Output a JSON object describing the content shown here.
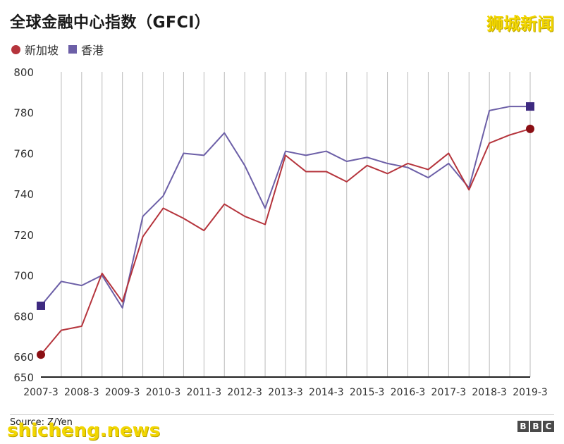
{
  "header": {
    "title": "全球金融中心指数（GFCI）",
    "watermark": "狮城新闻"
  },
  "footer": {
    "source": "Source: Z/Yen",
    "watermark": "shicheng.news",
    "bbc_letters": [
      "B",
      "B",
      "C"
    ]
  },
  "colors": {
    "singapore": "#b5343c",
    "hongkong": "#6c5fa7",
    "grid": "#bbbbbb",
    "axis": "#222222"
  },
  "chart_data": {
    "type": "line",
    "title": "全球金融中心指数（GFCI）",
    "xlabel": "",
    "ylabel": "",
    "ylim": [
      650,
      800
    ],
    "yticks": [
      650,
      660,
      680,
      700,
      720,
      740,
      760,
      780,
      800
    ],
    "x": [
      "2007-3",
      "2007-9",
      "2008-3",
      "2008-9",
      "2009-3",
      "2009-9",
      "2010-3",
      "2010-9",
      "2011-3",
      "2011-9",
      "2012-3",
      "2012-9",
      "2013-3",
      "2013-9",
      "2014-3",
      "2014-9",
      "2015-3",
      "2015-9",
      "2016-3",
      "2016-9",
      "2017-3",
      "2017-9",
      "2018-3",
      "2018-9",
      "2019-3"
    ],
    "xtick_labels": [
      "2007-3",
      "2008-3",
      "2009-3",
      "2010-3",
      "2011-3",
      "2012-3",
      "2013-3",
      "2014-3",
      "2015-3",
      "2016-3",
      "2017-3",
      "2018-3",
      "2019-3"
    ],
    "grid": "vertical",
    "legend_position": "top-left",
    "series": [
      {
        "name": "新加坡",
        "marker": "circle",
        "values": [
          661,
          673,
          675,
          701,
          687,
          719,
          733,
          728,
          722,
          735,
          729,
          725,
          759,
          751,
          751,
          746,
          754,
          750,
          755,
          752,
          760,
          742,
          765,
          769,
          772
        ]
      },
      {
        "name": "香港",
        "marker": "square",
        "values": [
          685,
          697,
          695,
          700,
          684,
          729,
          739,
          760,
          759,
          770,
          754,
          733,
          761,
          759,
          761,
          756,
          758,
          755,
          753,
          748,
          755,
          743,
          781,
          783,
          783
        ]
      }
    ]
  }
}
